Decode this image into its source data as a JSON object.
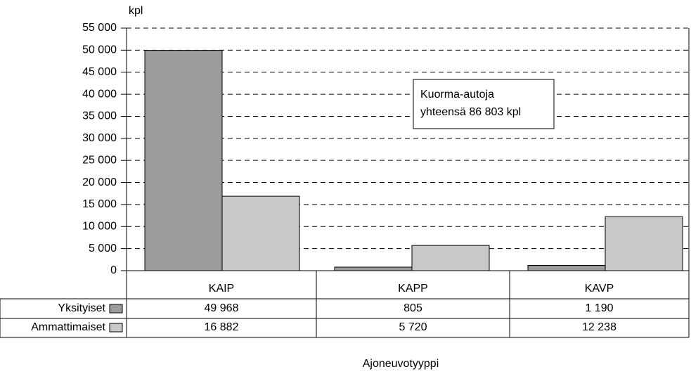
{
  "chart_data": {
    "type": "bar",
    "y_label": "kpl",
    "x_label": "Ajoneuvotyyppi",
    "annotation": [
      "Kuorma-autoja",
      "yhteensä 86 803 kpl"
    ],
    "categories": [
      "KAIP",
      "KAPP",
      "KAVP"
    ],
    "series": [
      {
        "name": "Yksityiset",
        "color": "#9c9c9c",
        "values": [
          49968,
          805,
          1190
        ],
        "value_labels": [
          "49 968",
          "805",
          "1 190"
        ]
      },
      {
        "name": "Ammattimaiset",
        "color": "#c8c8c8",
        "values": [
          16882,
          5720,
          12238
        ],
        "value_labels": [
          "16 882",
          "5 720",
          "12 238"
        ]
      }
    ],
    "ylim": [
      0,
      55000
    ],
    "yticks": [
      0,
      {
        "value": 5000,
        "label": "5 000"
      },
      {
        "value": 10000,
        "label": "10 000"
      },
      {
        "value": 15000,
        "label": "15 000"
      },
      {
        "value": 20000,
        "label": "20 000"
      },
      {
        "value": 25000,
        "label": "25 000"
      },
      {
        "value": 30000,
        "label": "30 000"
      },
      {
        "value": 35000,
        "label": "35 000"
      },
      {
        "value": 40000,
        "label": "40 000"
      },
      {
        "value": 45000,
        "label": "45 000"
      },
      {
        "value": 50000,
        "label": "50 000"
      },
      {
        "value": 55000,
        "label": "55 000"
      }
    ],
    "grid": true
  }
}
